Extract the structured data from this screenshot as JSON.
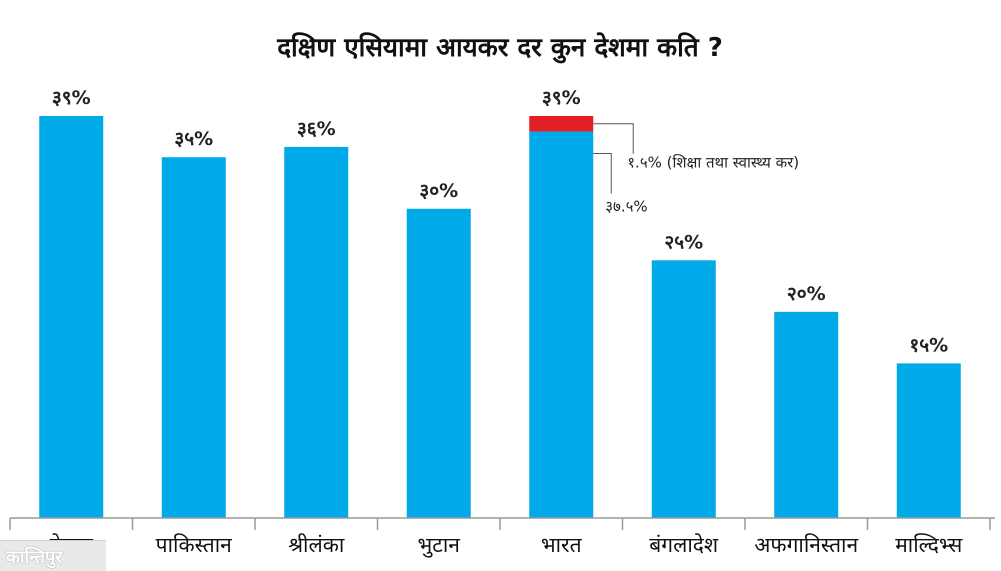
{
  "chart_data": {
    "type": "bar",
    "title": "दक्षिण एसियामा आयकर दर कुन देशमा कति ?",
    "categories": [
      "नेपाल",
      "पाकिस्तान",
      "श्रीलंका",
      "भुटान",
      "भारत",
      "बंगलादेश",
      "अफगानिस्तान",
      "माल्दिभ्स"
    ],
    "values": [
      39,
      35,
      36,
      30,
      39,
      25,
      20,
      15
    ],
    "value_labels": [
      "३९%",
      "३५%",
      "३६%",
      "३०%",
      "३९%",
      "२५%",
      "२०%",
      "१५%"
    ],
    "ylim": [
      0,
      39
    ],
    "grid": false,
    "stacked_segments": {
      "category": "भारत",
      "base_value": 37.5,
      "base_label": "३७.५%",
      "top_value": 1.5,
      "top_label": "१.५% (शिक्षा तथा स्वास्थ्य कर)"
    },
    "colors": {
      "bar": "#00a9e8",
      "top_segment": "#e31e24",
      "axis": "#999999"
    }
  },
  "logo_text": "कान्तिपुर"
}
